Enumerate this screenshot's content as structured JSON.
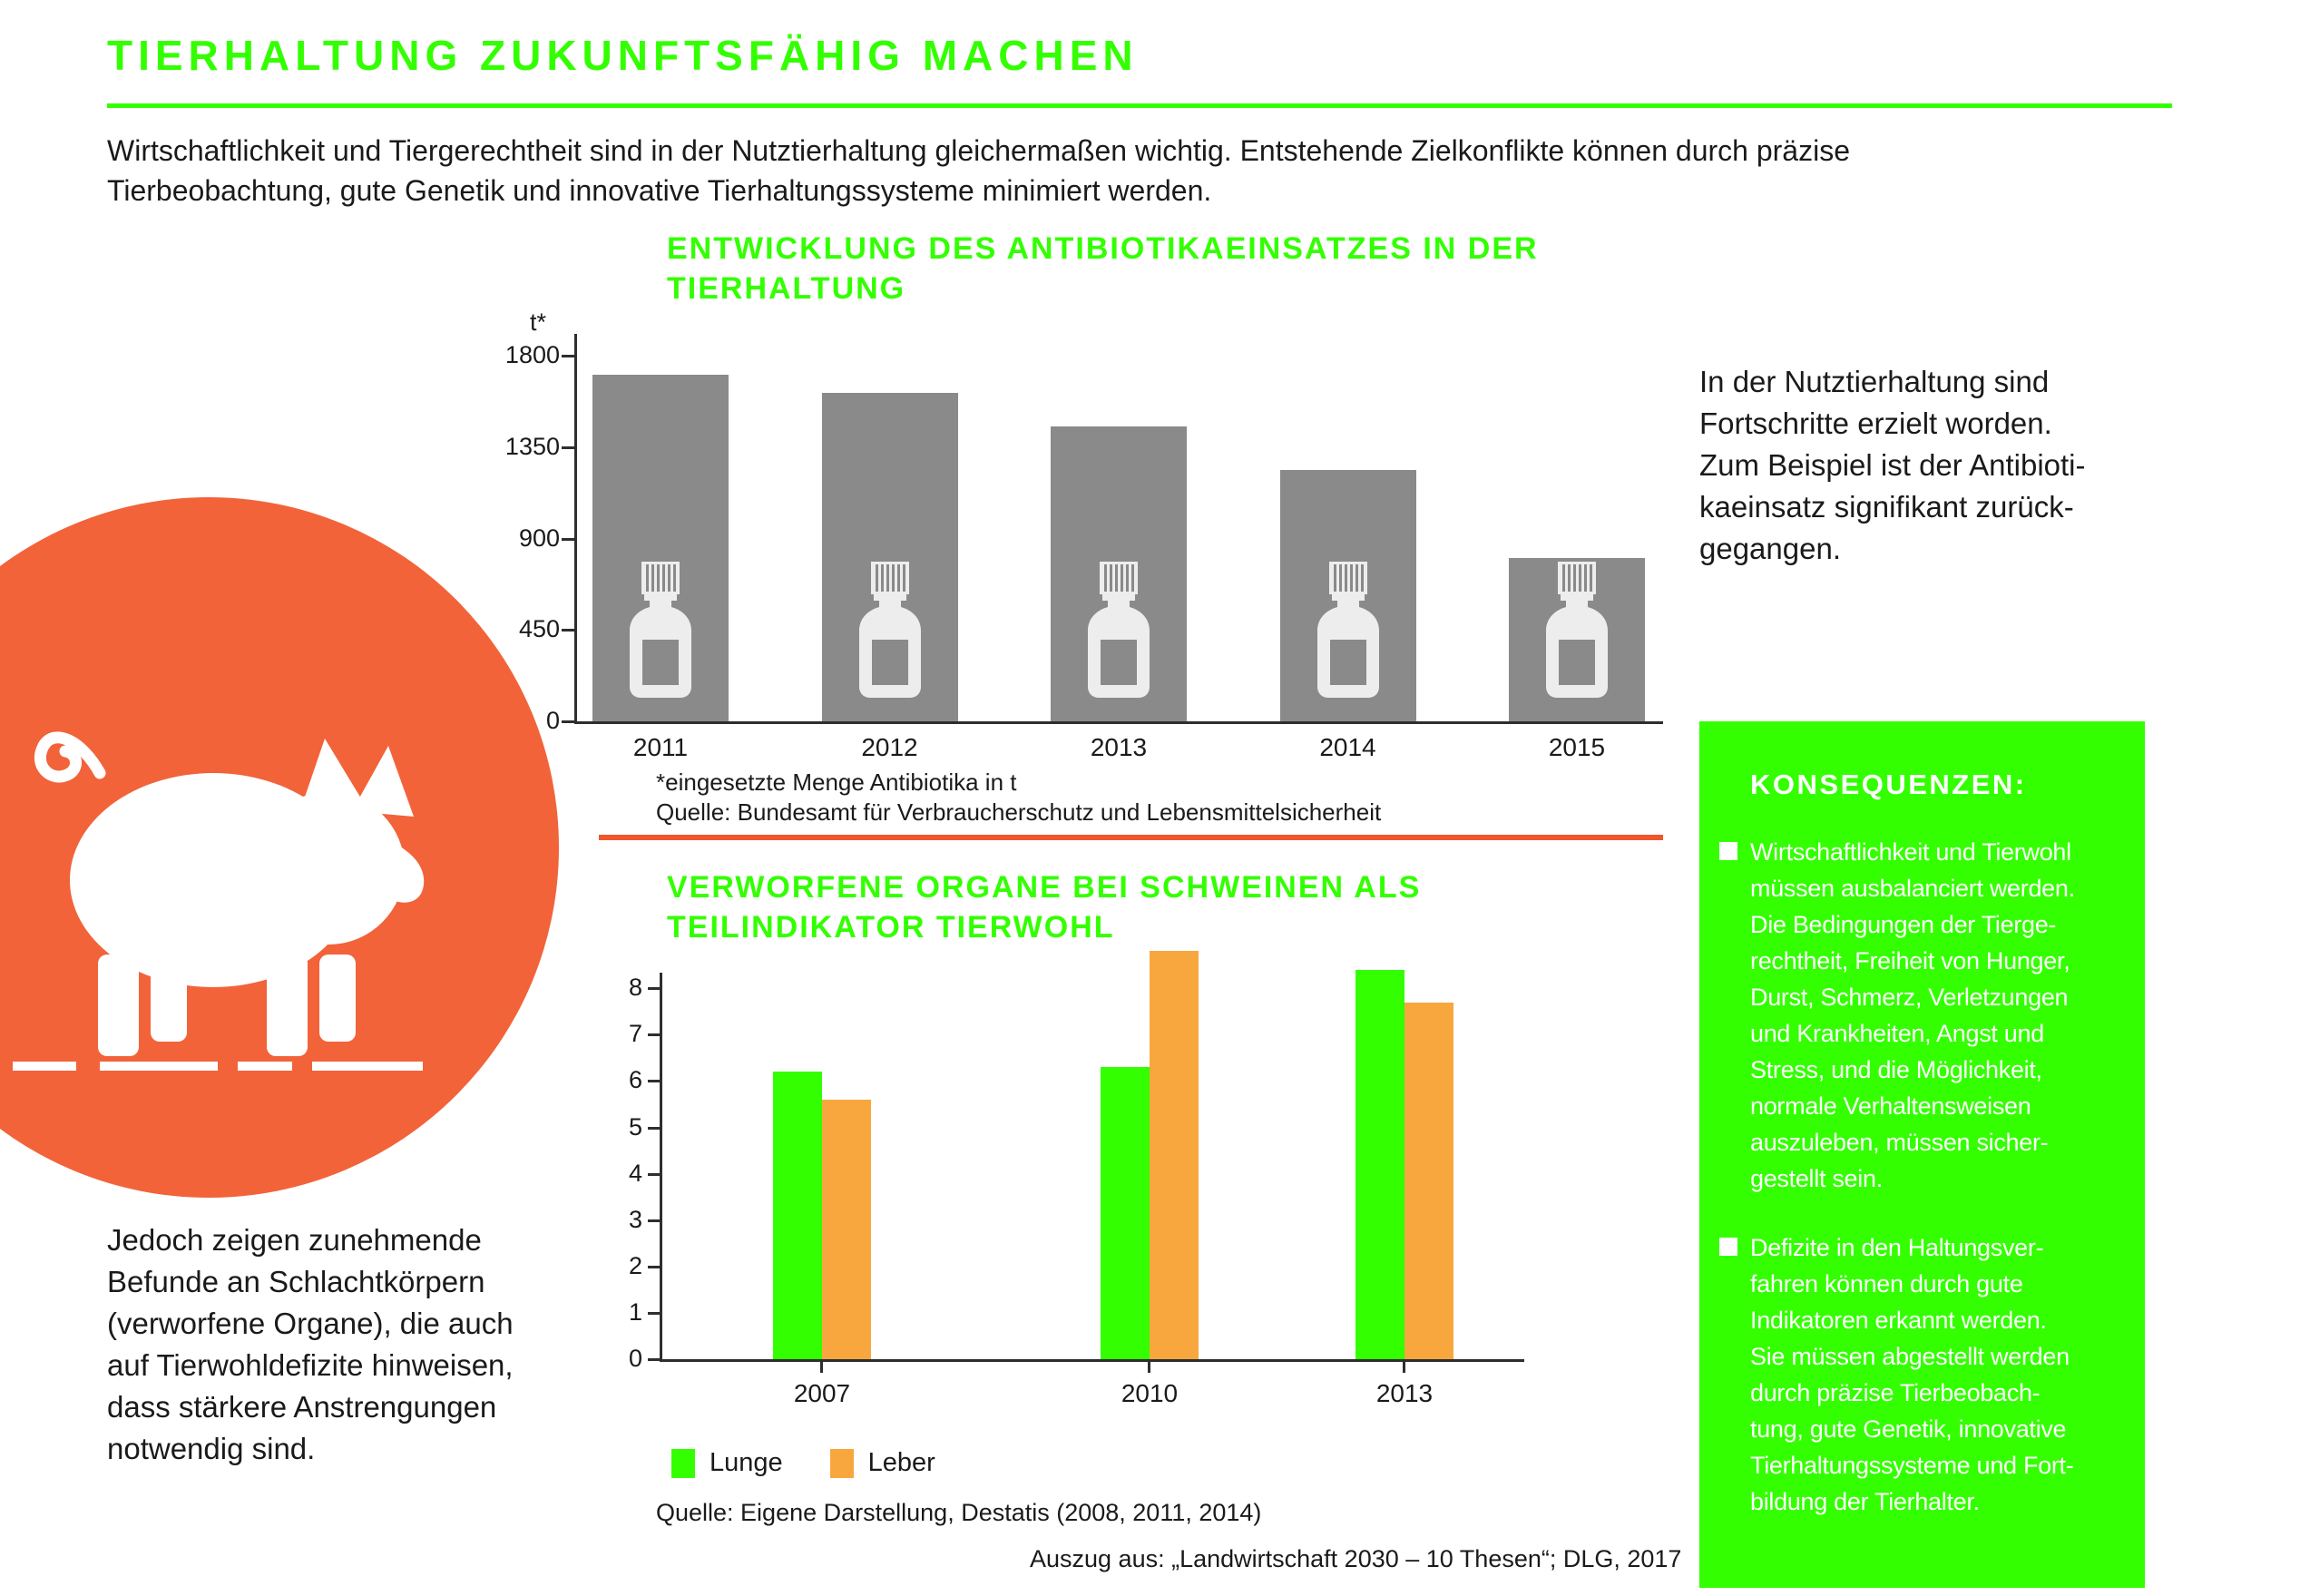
{
  "page": {
    "title": "TIERHALTUNG ZUKUNFTSFÄHIG MACHEN",
    "intro": "Wirtschaftlichkeit und Tiergerechtheit sind in der Nutztierhaltung gleichermaßen wichtig. Entstehende Zielkonflikte können durch präzise\nTierbeobachtung, gute Genetik und innovative Tierhaltungssysteme minimiert werden.",
    "footer_caption": "Auszug aus: „Landwirtschaft 2030 – 10 Thesen“; DLG, 2017"
  },
  "colors": {
    "accent_green": "#33FF00",
    "pig_circle_orange": "#F2633A",
    "divider_orange": "#F1552B",
    "antibiotics_bar_gray": "#8A8A8A",
    "lunge_green": "#33FF00",
    "leber_orange": "#F7A73E"
  },
  "notes": {
    "right_note": "In der Nutztierhaltung sind\nFortschritte erzielt worden.\nZum Beispiel ist der Antibioti-\nkaeinsatz signifikant zurück-\ngegangen.",
    "left_note": "Jedoch zeigen zunehmende\nBefunde an Schlachtkörpern\n(verworfene Organe), die auch\nauf Tierwohldefizite hinweisen,\ndass stärkere Anstrengungen\nnotwendig sind."
  },
  "consequences": {
    "heading": "KONSEQUENZEN:",
    "bullets": [
      "Wirtschaftlichkeit und Tierwohl\nmüssen ausbalanciert werden.\nDie Bedingungen der Tierge-\nrechtheit, Freiheit von Hunger,\nDurst, Schmerz, Verletzungen\nund Krankheiten, Angst und\nStress, und die Möglichkeit,\nnormale Verhaltensweisen\nauszuleben, müssen sicher-\ngestellt sein.",
      "Defizite in den Haltungsver-\nfahren können durch gute\nIndikatoren erkannt werden.\nSie müssen abgestellt werden\ndurch präzise Tierbeobach-\ntung, gute Genetik, innovative\nTierhaltungssysteme und Fort-\nbildung der Tierhalter."
    ]
  },
  "chart_data": [
    {
      "type": "bar",
      "title": "ENTWICKLUNG DES ANTIBIOTIKAEINSATZES IN DER TIERHALTUNG",
      "ylabel": "t*",
      "categories": [
        "2011",
        "2012",
        "2013",
        "2014",
        "2015"
      ],
      "values": [
        1706,
        1619,
        1452,
        1238,
        805
      ],
      "ylim": [
        0,
        1800
      ],
      "yticks": [
        0,
        450,
        900,
        1350,
        1800
      ],
      "grid": false,
      "bar_color": "#8A8A8A",
      "bar_icon": "medicine-bottle",
      "footnote": "*eingesetzte Menge Antibiotika in t",
      "source": "Quelle: Bundesamt für Verbraucherschutz und Lebensmittelsicherheit"
    },
    {
      "type": "bar",
      "title": "VERWORFENE ORGANE BEI SCHWEINEN ALS TEILINDIKATOR TIERWOHL",
      "categories": [
        "2007",
        "2010",
        "2013"
      ],
      "series": [
        {
          "name": "Lunge",
          "color": "#33FF00",
          "values": [
            6.2,
            6.3,
            8.4
          ]
        },
        {
          "name": "Leber",
          "color": "#F7A73E",
          "values": [
            5.6,
            8.8,
            7.7
          ]
        }
      ],
      "ylim": [
        0,
        8
      ],
      "yticks": [
        0,
        1,
        2,
        3,
        4,
        5,
        6,
        7,
        8
      ],
      "grid": false,
      "legend_position": "bottom",
      "source": "Quelle: Eigene Darstellung, Destatis (2008, 2011, 2014)"
    }
  ]
}
